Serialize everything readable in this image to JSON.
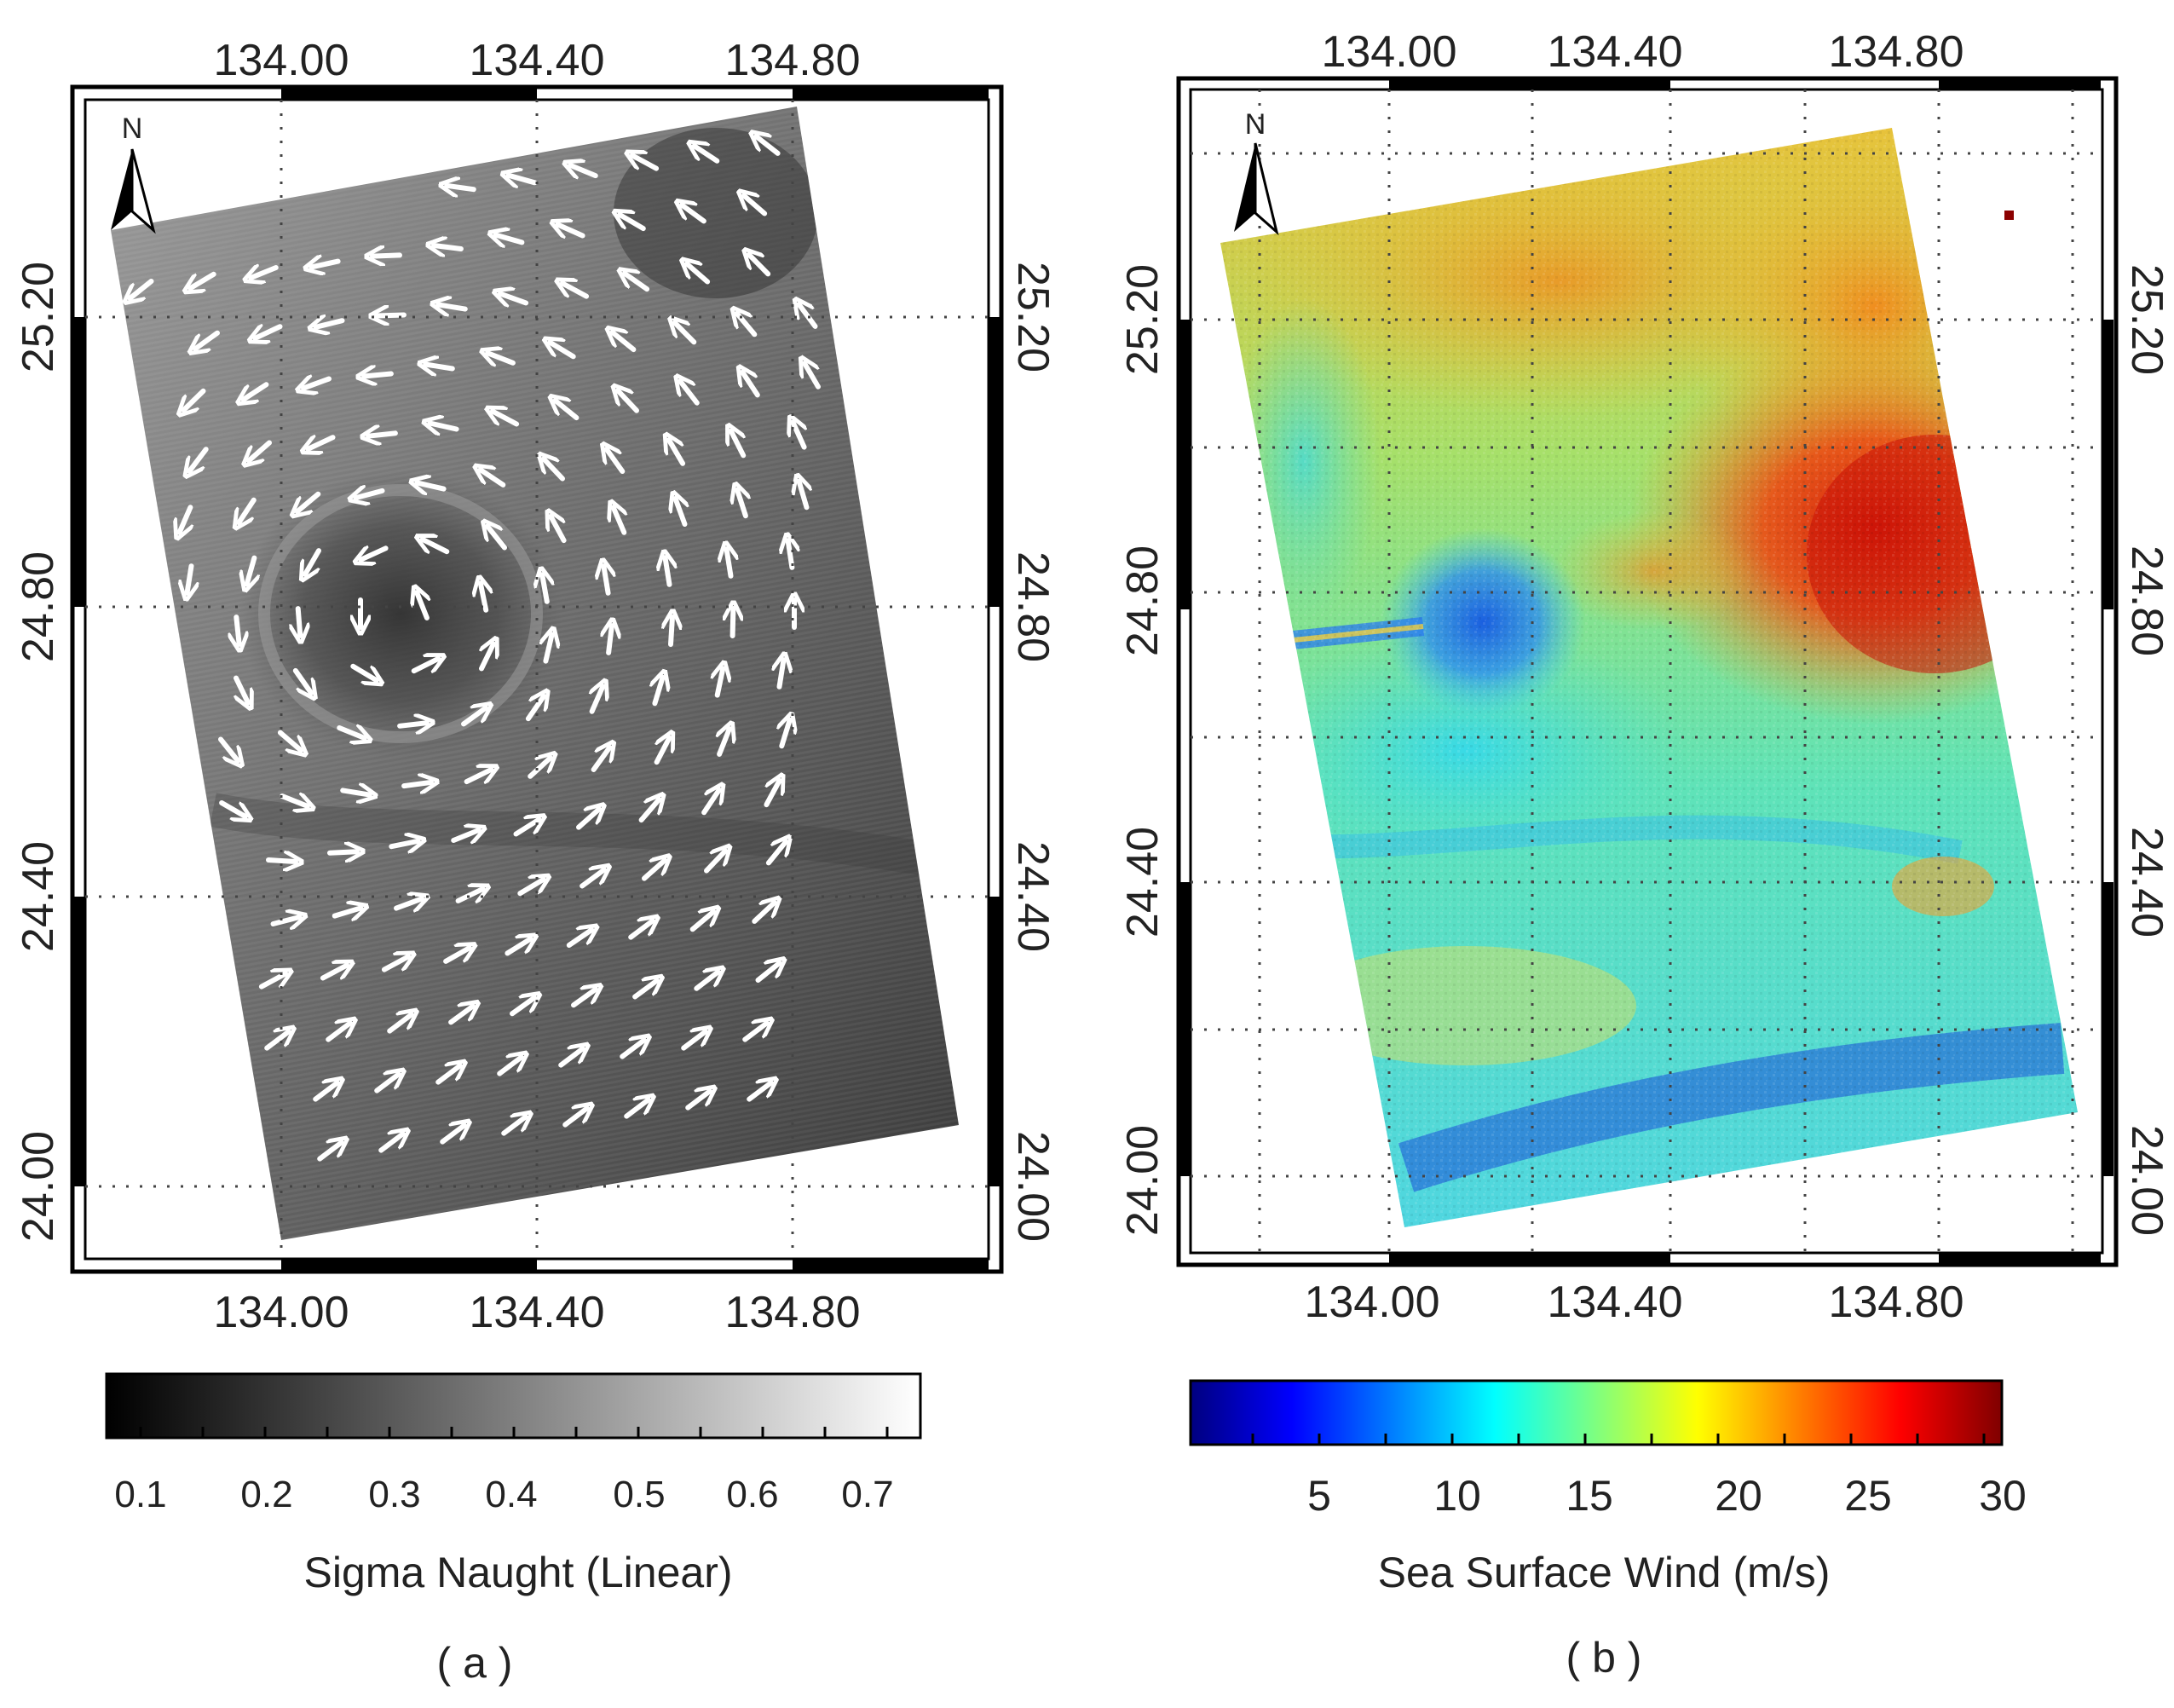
{
  "panels": [
    {
      "id": "a",
      "caption": "( a )",
      "north_label": "N",
      "x_ticks": [
        "134.00",
        "134.40",
        "134.80"
      ],
      "y_ticks": [
        "25.20",
        "24.80",
        "24.40",
        "24.00"
      ],
      "colorbar": {
        "title": "Sigma Naught (Linear)",
        "ticks": [
          "0.1",
          "0.2",
          "0.3",
          "0.4",
          "0.5",
          "0.6",
          "0.7"
        ],
        "colors": [
          "#000000",
          "#ffffff"
        ]
      }
    },
    {
      "id": "b",
      "caption": "( b )",
      "north_label": "N",
      "x_ticks": [
        "134.00",
        "134.40",
        "134.80"
      ],
      "y_ticks": [
        "25.20",
        "24.80",
        "24.40",
        "24.00"
      ],
      "colorbar": {
        "title": "Sea Surface Wind (m/s)",
        "ticks": [
          "5",
          "10",
          "15",
          "20",
          "25",
          "30"
        ],
        "colors": [
          "#00007f",
          "#0000ff",
          "#007fff",
          "#00ffff",
          "#7fff7f",
          "#ffff00",
          "#ff7f00",
          "#ff0000",
          "#7f0000"
        ]
      }
    }
  ]
}
